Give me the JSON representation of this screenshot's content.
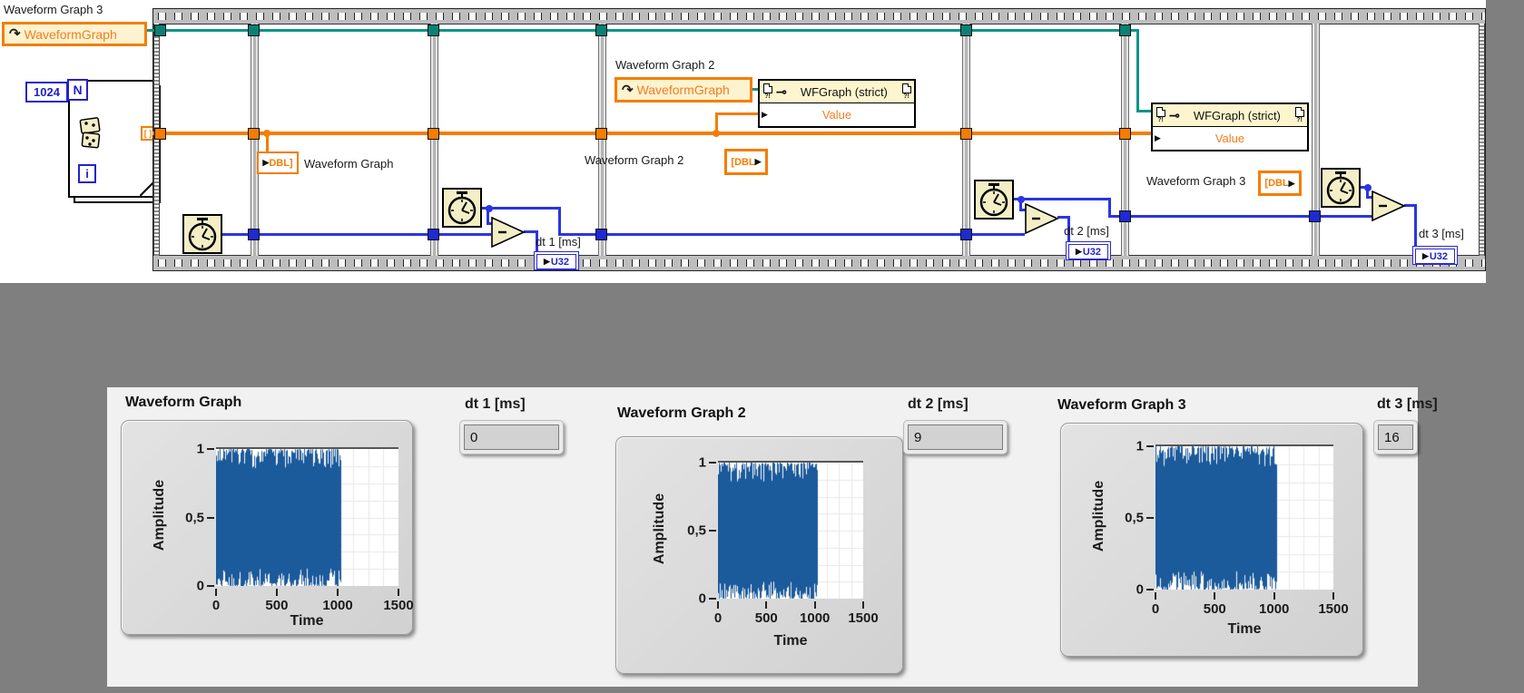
{
  "diagram": {
    "wg3_label": "Waveform Graph 3",
    "ref1_text": "WaveformGraph",
    "ref2_label": "Waveform Graph 2",
    "ref2_text": "WaveformGraph",
    "loop": {
      "count": "1024",
      "n": "N",
      "i": "i",
      "index_bracket": "[ ]"
    },
    "wg1_terminal_label": "Waveform Graph",
    "wg2_terminal_label": "Waveform Graph 2",
    "wg3_terminal_label": "Waveform Graph 3",
    "dbl": "DBL",
    "u32": "U32",
    "arr_open": "[",
    "arr_close": "]",
    "node1": {
      "title": "WFGraph (strict)",
      "property": "Value",
      "badge": "?!"
    },
    "node2": {
      "title": "WFGraph (strict)",
      "property": "Value",
      "badge": "?!"
    },
    "dt1": "dt 1 [ms]",
    "dt2": "dt 2 [ms]",
    "dt3": "dt 3 [ms]"
  },
  "panel": {
    "graphs": [
      {
        "title": "Waveform Graph",
        "ylabel": "Amplitude",
        "xlabel": "Time",
        "yticks": [
          "1",
          "0,5",
          "0"
        ],
        "xticks": [
          "0",
          "500",
          "1000",
          "1500"
        ]
      },
      {
        "title": "Waveform Graph 2",
        "ylabel": "Amplitude",
        "xlabel": "Time",
        "yticks": [
          "1",
          "0,5",
          "0"
        ],
        "xticks": [
          "0",
          "500",
          "1000",
          "1500"
        ]
      },
      {
        "title": "Waveform Graph 3",
        "ylabel": "Amplitude",
        "xlabel": "Time",
        "yticks": [
          "1",
          "0,5",
          "0"
        ],
        "xticks": [
          "0",
          "500",
          "1000",
          "1500"
        ]
      }
    ],
    "indicators": [
      {
        "label": "dt 1 [ms]",
        "value": "0"
      },
      {
        "label": "dt 2 [ms]",
        "value": "9"
      },
      {
        "label": "dt 3 [ms]",
        "value": "16"
      }
    ]
  },
  "colors": {
    "wire_teal": "#0f9486",
    "wire_orange": "#f57d00",
    "wire_blue": "#2b35e0",
    "plot_blue": "#1b5a9b",
    "desktop_gray": "#7f7f7f"
  },
  "chart_data": [
    {
      "type": "area",
      "title": "Waveform Graph",
      "ylabel": "Amplitude",
      "xlabel": "Time",
      "x_axis_range": [
        0,
        1500
      ],
      "y_axis_range": [
        0,
        1
      ],
      "x_ticks": [
        0,
        500,
        1000,
        1500
      ],
      "y_ticks": [
        0,
        0.5,
        1
      ],
      "n_points": 1024,
      "data_x_extent": [
        0,
        1024
      ],
      "data_y_extent": [
        0,
        1
      ],
      "description": "Uniform random noise, 1024 samples spanning 0..1 amplitude; plotted t=0..1024 of axis 0..1500; grid on",
      "color": "#1b5a9b",
      "seed": 11
    },
    {
      "type": "area",
      "title": "Waveform Graph 2",
      "ylabel": "Amplitude",
      "xlabel": "Time",
      "x_axis_range": [
        0,
        1500
      ],
      "y_axis_range": [
        0,
        1
      ],
      "x_ticks": [
        0,
        500,
        1000,
        1500
      ],
      "y_ticks": [
        0,
        0.5,
        1
      ],
      "n_points": 1024,
      "data_x_extent": [
        0,
        1024
      ],
      "data_y_extent": [
        0,
        1
      ],
      "description": "Uniform random noise, 1024 samples spanning 0..1 amplitude; plotted t=0..1024 of axis 0..1500; grid on",
      "color": "#1b5a9b",
      "seed": 23
    },
    {
      "type": "area",
      "title": "Waveform Graph 3",
      "ylabel": "Amplitude",
      "xlabel": "Time",
      "x_axis_range": [
        0,
        1500
      ],
      "y_axis_range": [
        0,
        1
      ],
      "x_ticks": [
        0,
        500,
        1000,
        1500
      ],
      "y_ticks": [
        0,
        0.5,
        1
      ],
      "n_points": 1024,
      "data_x_extent": [
        0,
        1024
      ],
      "data_y_extent": [
        0,
        1
      ],
      "description": "Uniform random noise, 1024 samples spanning 0..1 amplitude; plotted t=0..1024 of axis 0..1500; grid on",
      "color": "#1b5a9b",
      "seed": 37
    }
  ]
}
